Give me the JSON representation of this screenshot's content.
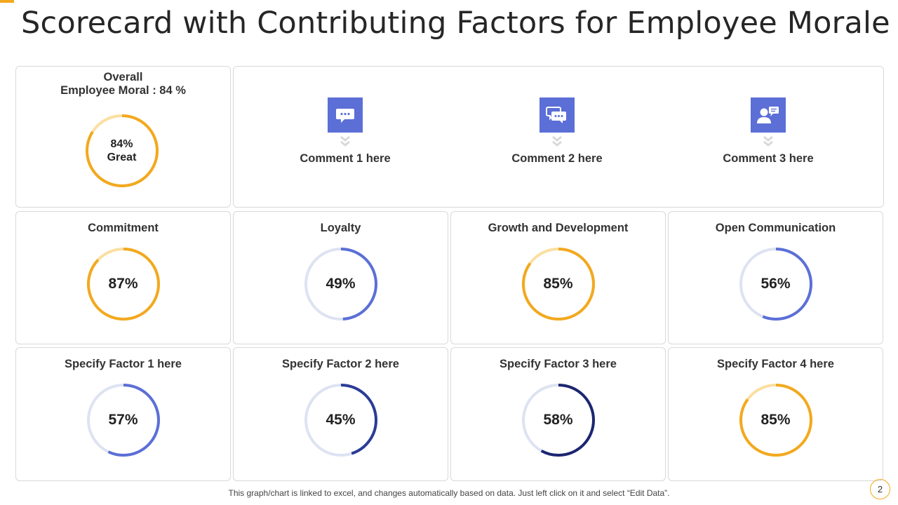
{
  "title": "Scorecard with Contributing Factors for Employee Morale",
  "overall": {
    "title_line1": "Overall",
    "title_line2": "Employee Moral : 84 %",
    "percent_label": "84%",
    "rating": "Great",
    "value": 84,
    "color": "#F2A91F",
    "track": "#FBDFA2"
  },
  "comments": [
    {
      "icon": "chat-bubble-icon",
      "text": "Comment 1 here"
    },
    {
      "icon": "chat-bubbles-icon",
      "text": "Comment 2 here"
    },
    {
      "icon": "person-message-icon",
      "text": "Comment 3 here"
    }
  ],
  "colors": {
    "accent": "#F2A91F",
    "icon_bg": "#5B6FD6",
    "chevron": "#D9D9D9",
    "border": "#D9D9D9"
  },
  "chart_data": {
    "type": "donut-grid",
    "title": "Scorecard with Contributing Factors for Employee Morale",
    "series": [
      {
        "name": "Commitment",
        "value": 87,
        "label": "87%",
        "color": "#F2A91F",
        "track": "#FBDFA2"
      },
      {
        "name": "Loyalty",
        "value": 49,
        "label": "49%",
        "color": "#5B6FD6",
        "track": "#DEE3F3"
      },
      {
        "name": "Growth and Development",
        "value": 85,
        "label": "85%",
        "color": "#F2A91F",
        "track": "#FBDFA2"
      },
      {
        "name": "Open Communication",
        "value": 56,
        "label": "56%",
        "color": "#5B6FD6",
        "track": "#DEE3F3"
      },
      {
        "name": "Specify Factor 1 here",
        "value": 57,
        "label": "57%",
        "color": "#5B6FD6",
        "track": "#DEE3F3"
      },
      {
        "name": "Specify Factor 2 here",
        "value": 45,
        "label": "45%",
        "color": "#2B3C96",
        "track": "#DEE3F3"
      },
      {
        "name": "Specify Factor 3 here",
        "value": 58,
        "label": "58%",
        "color": "#1C2670",
        "track": "#DEE3F3"
      },
      {
        "name": "Specify Factor 4 here",
        "value": 85,
        "label": "85%",
        "color": "#F2A91F",
        "track": "#FBDFA2"
      }
    ]
  },
  "footnote": "This graph/chart is linked to excel, and changes automatically based on data. Just left click on it and select “Edit Data”.",
  "page_number": "2"
}
